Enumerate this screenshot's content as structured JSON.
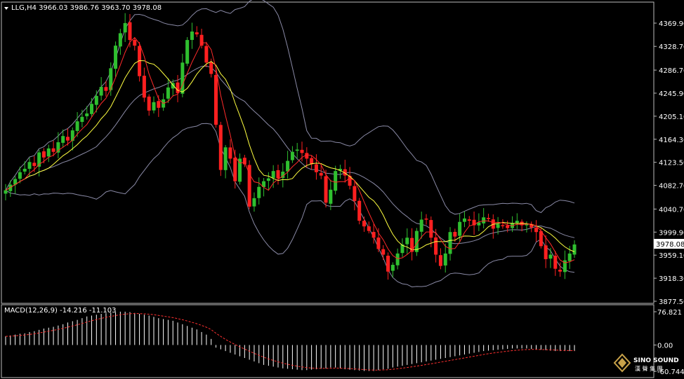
{
  "window": {
    "symbol_header": "LLG,H4  3966.03 3986.76 3963.70 3978.08",
    "triangle_icon": "triangle-down-icon"
  },
  "price_axis": {
    "ticks": [
      "4369.90",
      "4328.70",
      "4286.70",
      "4245.90",
      "4205.10",
      "4164.30",
      "4123.50",
      "4082.70",
      "4040.70",
      "3999.90",
      "3959.10",
      "3918.30",
      "3877.50"
    ],
    "current_price": "3978.08"
  },
  "macd_panel": {
    "header": "MACD(12,26,9) -14.216 -11.103",
    "ticks": [
      "76.821",
      "0.00",
      "-60.744"
    ]
  },
  "logo": {
    "name": "SINO SOUND",
    "chinese": "漢 聲 集 團"
  },
  "colors": {
    "background": "#000000",
    "bull_candle": "#2fbf2f",
    "bear_candle": "#ff2020",
    "bollinger": "#8a8aa6",
    "ma_fast": "#ff2a2a",
    "ma_slow": "#ffff40",
    "macd_hist": "#ffffff",
    "macd_signal": "#ff3030"
  },
  "chart_data": {
    "type": "candlestick",
    "ylim": [
      3870,
      4405
    ],
    "closes": [
      4074,
      4084,
      4094,
      4106,
      4112,
      4124,
      4117,
      4141,
      4132,
      4148,
      4142,
      4159,
      4170,
      4162,
      4180,
      4196,
      4204,
      4210,
      4227,
      4241,
      4257,
      4250,
      4290,
      4330,
      4352,
      4370,
      4340,
      4330,
      4276,
      4238,
      4215,
      4230,
      4220,
      4235,
      4256,
      4264,
      4246,
      4300,
      4340,
      4355,
      4350,
      4330,
      4300,
      4280,
      4190,
      4110,
      4150,
      4130,
      4090,
      4130,
      4120,
      4045,
      4060,
      4080,
      4090,
      4095,
      4108,
      4095,
      4107,
      4126,
      4142,
      4146,
      4140,
      4130,
      4120,
      4106,
      4100,
      4052,
      4075,
      4108,
      4112,
      4100,
      4082,
      4055,
      4020,
      4010,
      4002,
      3990,
      3970,
      3960,
      3930,
      3942,
      3962,
      3978,
      3990,
      3965,
      4002,
      4022,
      4022,
      3990,
      3960,
      3940,
      3962,
      4000,
      3992,
      4018,
      4024,
      4020,
      4012,
      4017,
      4026,
      4023,
      4006,
      4014,
      4012,
      4007,
      4016,
      4020,
      4012,
      4015,
      4008,
      4000,
      3975,
      3952,
      3960,
      3935,
      3930,
      3950,
      3962,
      3978
    ],
    "macd_hist": [
      20,
      22,
      24,
      26,
      27,
      30,
      32,
      35,
      38,
      40,
      42,
      45,
      48,
      52,
      55,
      58,
      62,
      66,
      68,
      70,
      72,
      74,
      75,
      76,
      77,
      77,
      76,
      74,
      72,
      70,
      68,
      65,
      62,
      60,
      58,
      56,
      52,
      48,
      44,
      40,
      36,
      30,
      24,
      14,
      -6,
      -10,
      -14,
      -18,
      -22,
      -26,
      -30,
      -34,
      -38,
      -42,
      -46,
      -48,
      -50,
      -52,
      -54,
      -55,
      -56,
      -57,
      -58,
      -58,
      -57,
      -56,
      -55,
      -54,
      -52,
      -52,
      -54,
      -56,
      -57,
      -58,
      -59,
      -60,
      -60,
      -60,
      -58,
      -56,
      -55,
      -52,
      -50,
      -48,
      -46,
      -44,
      -42,
      -40,
      -38,
      -36,
      -34,
      -32,
      -30,
      -28,
      -26,
      -24,
      -22,
      -20,
      -18,
      -16,
      -14,
      -13,
      -12,
      -11,
      -10,
      -9,
      -8,
      -8,
      -8,
      -8,
      -9,
      -10,
      -11,
      -12,
      -13,
      -14,
      -14,
      -14,
      -14,
      -14
    ],
    "macd_ylim": [
      -60.744,
      76.821
    ]
  }
}
